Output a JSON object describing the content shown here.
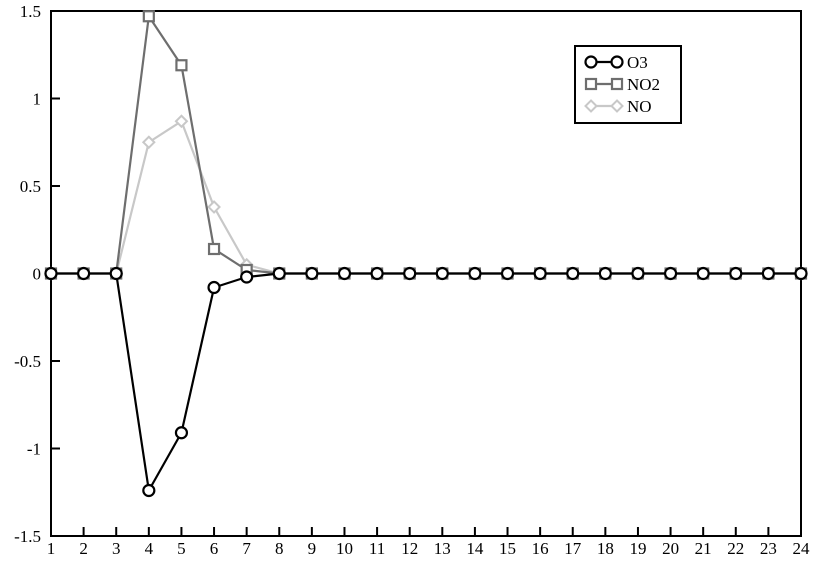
{
  "chart_data": {
    "type": "line",
    "title": "",
    "xlabel": "",
    "ylabel": "",
    "x": [
      1,
      2,
      3,
      4,
      5,
      6,
      7,
      8,
      9,
      10,
      11,
      12,
      13,
      14,
      15,
      16,
      17,
      18,
      19,
      20,
      21,
      22,
      23,
      24
    ],
    "xticks": [
      "1",
      "2",
      "3",
      "4",
      "5",
      "6",
      "7",
      "8",
      "9",
      "10",
      "11",
      "12",
      "13",
      "14",
      "15",
      "16",
      "17",
      "18",
      "19",
      "20",
      "21",
      "22",
      "23",
      "24"
    ],
    "xlim": [
      1,
      24
    ],
    "ylim": [
      -1.5,
      1.5
    ],
    "yticks": [
      {
        "value": 1.5,
        "label": "1.5"
      },
      {
        "value": 1,
        "label": "1"
      },
      {
        "value": 0.5,
        "label": "0.5"
      },
      {
        "value": 0,
        "label": "0"
      },
      {
        "value": -0.5,
        "label": "-0.5"
      },
      {
        "value": -1,
        "label": "-1"
      },
      {
        "value": -1.5,
        "label": "-1.5"
      }
    ],
    "grid": false,
    "legend_position": "top-right",
    "series": [
      {
        "name": "O3",
        "color": "#000000",
        "marker": "circle",
        "values": [
          0,
          0,
          0,
          -1.24,
          -0.91,
          -0.08,
          -0.02,
          0,
          0,
          0,
          0,
          0,
          0,
          0,
          0,
          0,
          0,
          0,
          0,
          0,
          0,
          0,
          0,
          0
        ]
      },
      {
        "name": "NO2",
        "color": "#6e6e6e",
        "marker": "square",
        "values": [
          0,
          0,
          0,
          1.47,
          1.19,
          0.14,
          0.02,
          0,
          0,
          0,
          0,
          0,
          0,
          0,
          0,
          0,
          0,
          0,
          0,
          0,
          0,
          0,
          0,
          0
        ]
      },
      {
        "name": "NO",
        "color": "#c8c8c8",
        "marker": "diamond",
        "values": [
          0,
          0,
          0,
          0.75,
          0.87,
          0.38,
          0.05,
          0,
          0,
          0,
          0,
          0,
          0,
          0,
          0,
          0,
          0,
          0,
          0,
          0,
          0,
          0,
          0,
          0
        ]
      }
    ]
  }
}
